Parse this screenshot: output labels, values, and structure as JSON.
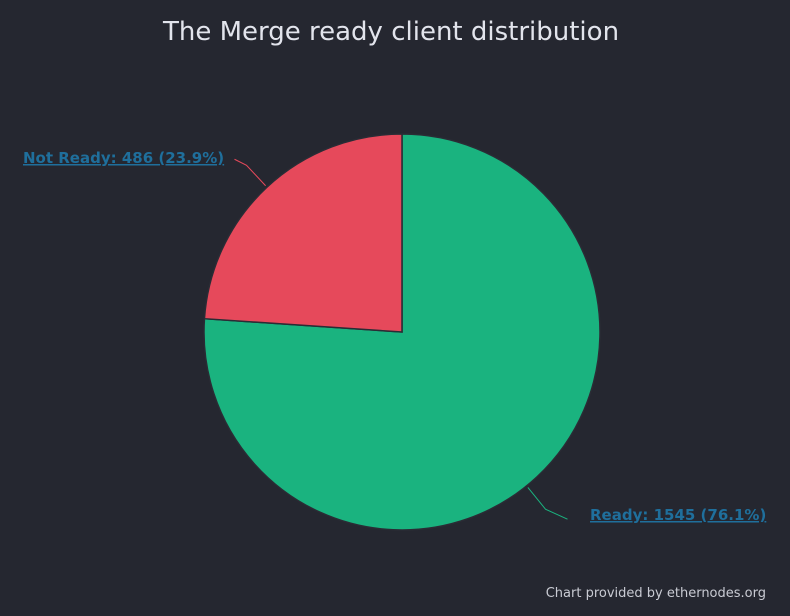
{
  "chart_data": {
    "type": "pie",
    "title": "The Merge ready client distribution",
    "slices": [
      {
        "name": "Ready",
        "value": 1545,
        "percent": "76.1%",
        "label": "Ready: 1545 (76.1%)",
        "color": "#1ab37f"
      },
      {
        "name": "Not Ready",
        "value": 486,
        "percent": "23.9%",
        "label": "Not Ready: 486 (23.9%)",
        "color": "#e6495b"
      }
    ],
    "credit": "Chart provided by ethernodes.org"
  }
}
